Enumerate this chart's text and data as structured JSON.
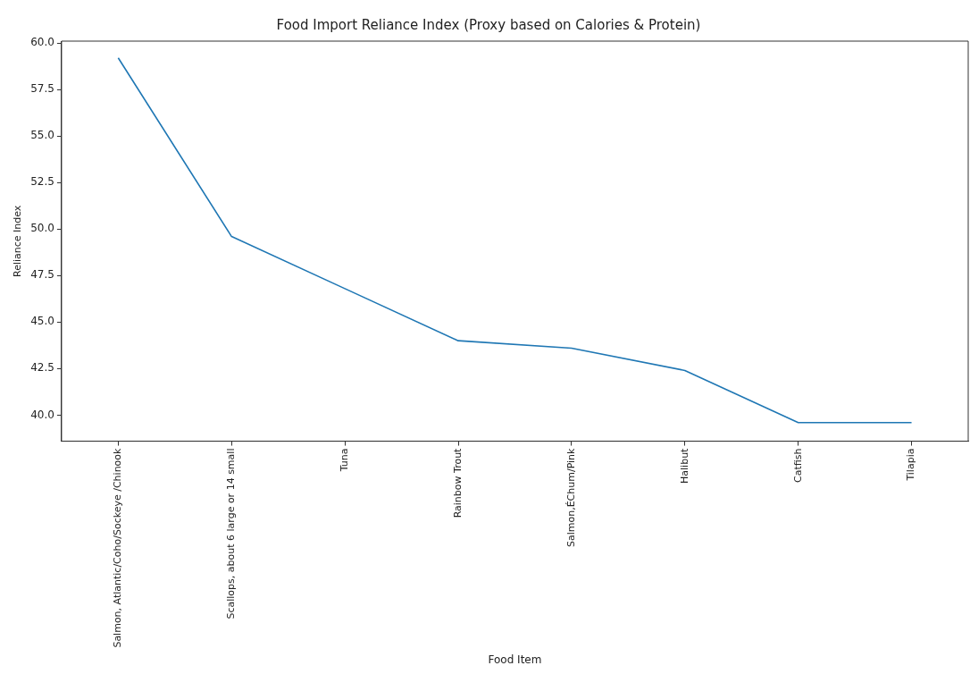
{
  "chart_data": {
    "type": "line",
    "title": "Food Import Reliance Index (Proxy based on Calories & Protein)",
    "xlabel": "Food Item",
    "ylabel": "Reliance Index",
    "categories": [
      "Salmon, Atlantic/Coho/Sockeye /Chinook",
      "Scallops, about 6 large or 14 small",
      "Tuna",
      "Rainbow Trout",
      "Salmon,ÉChum/Pink",
      "Halibut",
      "Catfish",
      "Tilapia"
    ],
    "values": [
      59.2,
      49.6,
      46.8,
      44.0,
      43.6,
      42.4,
      39.6,
      39.6
    ],
    "color": "#1f77b4",
    "ylim": [
      38.6,
      60.1
    ],
    "yticks": [
      {
        "value": 40,
        "label": "40.0"
      },
      {
        "value": 42.5,
        "label": "42.5"
      },
      {
        "value": 45,
        "label": "45.0"
      },
      {
        "value": 47.5,
        "label": "47.5"
      },
      {
        "value": 50,
        "label": "50.0"
      },
      {
        "value": 52.5,
        "label": "52.5"
      },
      {
        "value": 55,
        "label": "55.0"
      },
      {
        "value": 57.5,
        "label": "57.5"
      },
      {
        "value": 60,
        "label": "60.0"
      }
    ],
    "marker": "none",
    "line_style": "solid",
    "grid": false,
    "legend": false
  }
}
